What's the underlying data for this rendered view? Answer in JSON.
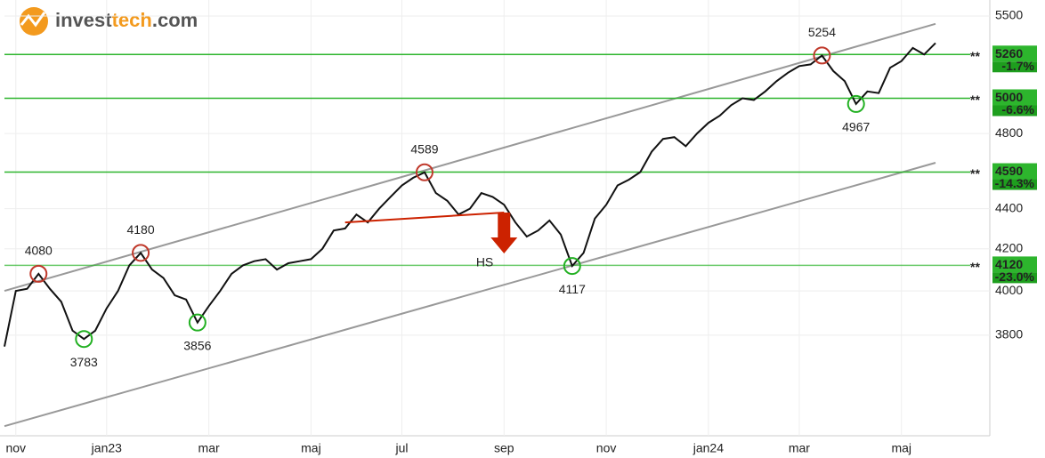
{
  "brand": {
    "parts": [
      "invest",
      "tech",
      ".com"
    ]
  },
  "chart_data": {
    "type": "line",
    "log_scale": true,
    "categories": [
      null,
      "nov",
      null,
      null,
      null,
      null,
      null,
      null,
      null,
      "jan23",
      null,
      null,
      null,
      null,
      null,
      null,
      null,
      null,
      "mar",
      null,
      null,
      null,
      null,
      null,
      null,
      null,
      null,
      "maj",
      null,
      null,
      null,
      null,
      null,
      null,
      null,
      "jul",
      null,
      null,
      null,
      null,
      null,
      null,
      null,
      null,
      "sep",
      null,
      null,
      null,
      null,
      null,
      null,
      null,
      null,
      "nov",
      null,
      null,
      null,
      null,
      null,
      null,
      null,
      null,
      "jan24",
      null,
      null,
      null,
      null,
      null,
      null,
      null,
      "mar",
      null,
      null,
      null,
      null,
      null,
      null,
      null,
      null,
      "maj",
      null,
      null,
      null
    ],
    "series": [
      {
        "color": "#111111",
        "values": [
          3750,
          4000,
          4010,
          4080,
          4010,
          3950,
          3820,
          3783,
          3820,
          3920,
          4000,
          4120,
          4180,
          4100,
          4060,
          3980,
          3960,
          3856,
          3930,
          4000,
          4080,
          4120,
          4140,
          4150,
          4100,
          4130,
          4140,
          4150,
          4200,
          4290,
          4300,
          4370,
          4330,
          4400,
          4460,
          4520,
          4560,
          4589,
          4480,
          4440,
          4370,
          4400,
          4480,
          4460,
          4420,
          4330,
          4260,
          4290,
          4340,
          4270,
          4117,
          4180,
          4350,
          4420,
          4520,
          4550,
          4590,
          4700,
          4770,
          4780,
          4730,
          4800,
          4860,
          4900,
          4960,
          5000,
          4990,
          5040,
          5100,
          5150,
          5190,
          5200,
          5254,
          5160,
          5100,
          4967,
          5040,
          5030,
          5180,
          5220,
          5300,
          5260,
          5330
        ]
      }
    ],
    "ylim": [
      3382,
      5574
    ],
    "yticks": [
      3800,
      4000,
      4200,
      4400,
      4800,
      5500
    ],
    "grid": true,
    "channel": {
      "color": "#999999",
      "upper": [
        4000,
        5450
      ],
      "lower": [
        3420,
        4640
      ]
    },
    "levels": {
      "color": "#2db52d",
      "marker": "**",
      "values": [
        5260,
        5000,
        4590,
        4120
      ],
      "changes": [
        -1.7,
        -6.6,
        -14.3,
        -23.0
      ],
      "change_labels": [
        "-1.7%",
        "-6.6%",
        "-14.3%",
        "-23.0%"
      ]
    },
    "extremes": [
      {
        "at": 3,
        "value": 4080,
        "kind": "high"
      },
      {
        "at": 7,
        "value": 3783,
        "kind": "low"
      },
      {
        "at": 12,
        "value": 4180,
        "kind": "high"
      },
      {
        "at": 17,
        "value": 3856,
        "kind": "low"
      },
      {
        "at": 37,
        "value": 4589,
        "kind": "high"
      },
      {
        "at": 50,
        "value": 4117,
        "kind": "low"
      },
      {
        "at": 72,
        "value": 5254,
        "kind": "high"
      },
      {
        "at": 75,
        "value": 4967,
        "kind": "low"
      }
    ],
    "pattern": {
      "label": "HS",
      "color": "#cc2200",
      "from": 30,
      "to": 44,
      "neckline": [
        4330,
        4380
      ]
    }
  }
}
